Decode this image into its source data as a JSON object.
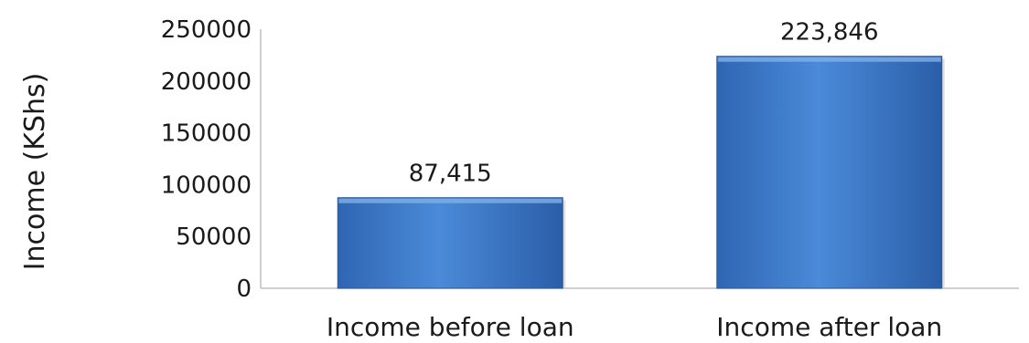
{
  "chart_data": {
    "type": "bar",
    "categories": [
      "Income before loan",
      "Income after loan"
    ],
    "values": [
      87415,
      223846
    ],
    "data_labels": [
      "87,415",
      "223,846"
    ],
    "title": "",
    "xlabel": "",
    "ylabel": "Income (KShs)",
    "ylim": [
      0,
      250000
    ],
    "y_ticks": [
      0,
      50000,
      100000,
      150000,
      200000,
      250000
    ],
    "y_tick_labels": [
      "0",
      "50000",
      "100000",
      "150000",
      "200000",
      "250000"
    ],
    "grid": false,
    "legend": "none",
    "bar_color": "#3b78c9"
  }
}
